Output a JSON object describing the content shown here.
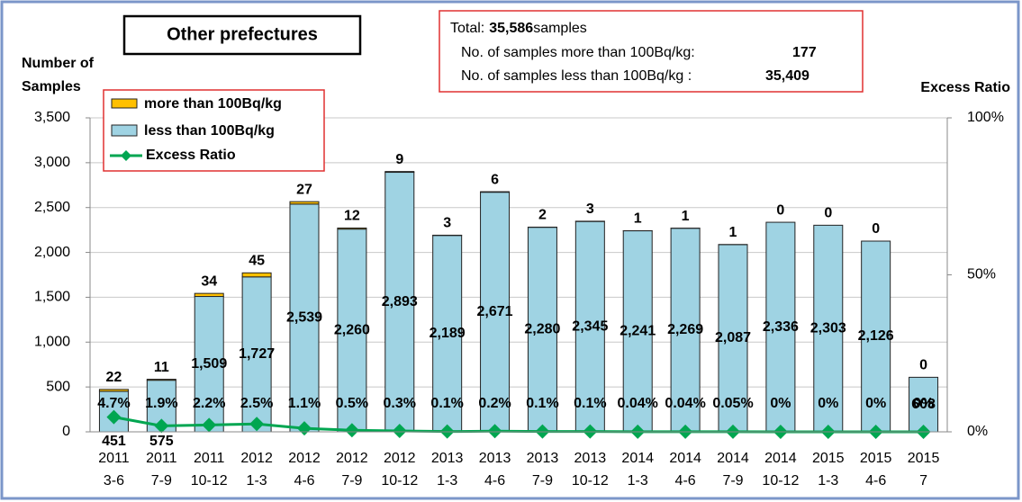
{
  "chart_data": {
    "type": "bar",
    "title": "Other prefectures",
    "info_box": {
      "total_label": "Total:",
      "total": "35,586",
      "total_unit": "samples",
      "more_label": "No. of samples more than 100Bq/kg:",
      "more_count": "177",
      "less_label": "No. of samples less than 100Bq/kg :",
      "less_count": "35,409"
    },
    "y_label": [
      "Number of",
      "Samples"
    ],
    "y2_label": "Excess Ratio",
    "categories": [
      [
        "2011",
        "3-6"
      ],
      [
        "2011",
        "7-9"
      ],
      [
        "2011",
        "10-12"
      ],
      [
        "2012",
        "1-3"
      ],
      [
        "2012",
        "4-6"
      ],
      [
        "2012",
        "7-9"
      ],
      [
        "2012",
        "10-12"
      ],
      [
        "2013",
        "1-3"
      ],
      [
        "2013",
        "4-6"
      ],
      [
        "2013",
        "7-9"
      ],
      [
        "2013",
        "10-12"
      ],
      [
        "2014",
        "1-3"
      ],
      [
        "2014",
        "4-6"
      ],
      [
        "2014",
        "7-9"
      ],
      [
        "2014",
        "10-12"
      ],
      [
        "2015",
        "1-3"
      ],
      [
        "2015",
        "4-6"
      ],
      [
        "2015",
        "7"
      ]
    ],
    "stacked": true,
    "series": [
      {
        "name": "less than 100Bq/kg",
        "color": "#9fd3e3",
        "values": [
          451,
          575,
          1509,
          1727,
          2539,
          2260,
          2893,
          2189,
          2671,
          2280,
          2345,
          2241,
          2269,
          2087,
          2336,
          2303,
          2126,
          608
        ],
        "value_labels": [
          "451",
          "575",
          "1,509",
          "1,727",
          "2,539",
          "2,260",
          "2,893",
          "2,189",
          "2,671",
          "2,280",
          "2,345",
          "2,241",
          "2,269",
          "2,087",
          "2,336",
          "2,303",
          "2,126",
          "608"
        ]
      },
      {
        "name": "more than 100Bq/kg",
        "color": "#ffc000",
        "values": [
          22,
          11,
          34,
          45,
          27,
          12,
          9,
          3,
          6,
          2,
          3,
          1,
          1,
          1,
          0,
          0,
          0,
          0
        ]
      },
      {
        "name": "Excess Ratio",
        "color": "#00a651",
        "type": "line",
        "axis": "y2",
        "values": [
          4.7,
          1.9,
          2.2,
          2.5,
          1.1,
          0.5,
          0.3,
          0.1,
          0.2,
          0.1,
          0.1,
          0.04,
          0.04,
          0.05,
          0,
          0,
          0,
          0
        ],
        "value_labels": [
          "4.7%",
          "1.9%",
          "2.2%",
          "2.5%",
          "1.1%",
          "0.5%",
          "0.3%",
          "0.1%",
          "0.2%",
          "0.1%",
          "0.1%",
          "0.04%",
          "0.04%",
          "0.05%",
          "0%",
          "0%",
          "0%",
          "0%"
        ]
      }
    ],
    "ylim": [
      0,
      3500
    ],
    "yticks": [
      0,
      500,
      {
        "value": 1000,
        "label": "1,000"
      },
      {
        "value": 1500,
        "label": "1,500"
      },
      {
        "value": 2000,
        "label": "2,000"
      },
      {
        "value": 2500,
        "label": "2,500"
      },
      {
        "value": 3000,
        "label": "3,000"
      },
      {
        "value": 3500,
        "label": "3,500"
      }
    ],
    "y2lim": [
      0,
      100
    ],
    "y2ticks": [
      {
        "value": 0,
        "label": "0%"
      },
      {
        "value": 50,
        "label": "50%"
      },
      {
        "value": 100,
        "label": "100%"
      }
    ],
    "grid": true
  }
}
